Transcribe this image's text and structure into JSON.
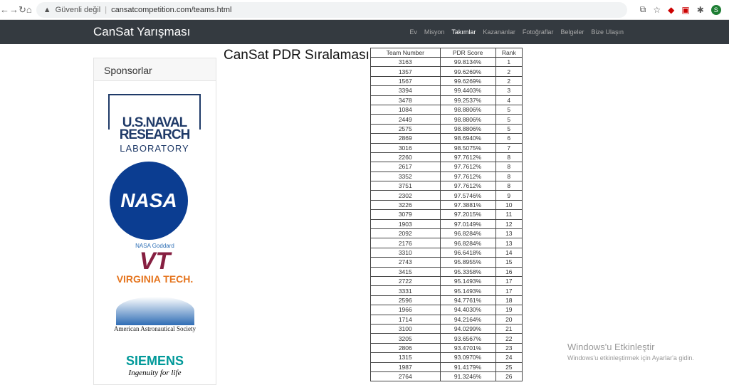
{
  "browser": {
    "security": "Güvenli değil",
    "url": "cansatcompetition.com/teams.html",
    "profile": "S"
  },
  "nav": {
    "brand": "CanSat Yarışması",
    "links": [
      "Ev",
      "Misyon",
      "Takımlar",
      "Kazananlar",
      "Fotoğraflar",
      "Belgeler",
      "Bize Ulaşın"
    ],
    "active": "Takımlar"
  },
  "sidebar": {
    "title": "Sponsorlar",
    "nrl": [
      "U.S.NAVAL",
      "RESEARCH",
      "LABORATORY"
    ],
    "nasa": "NASA",
    "nasa_caption": "NASA Goddard",
    "vt": "VT",
    "vt_name": "VIRGINIA TECH.",
    "aas": "American Astronautical Society",
    "siemens": "SIEMENS",
    "siemens_tag": "Ingenuity for life"
  },
  "main": {
    "title": "CanSat PDR Sıralaması",
    "columns": [
      "Team Number",
      "PDR Score",
      "Rank"
    ],
    "rows": [
      [
        "3163",
        "99.8134%",
        "1"
      ],
      [
        "1357",
        "99.6269%",
        "2"
      ],
      [
        "1567",
        "99.6269%",
        "2"
      ],
      [
        "3394",
        "99.4403%",
        "3"
      ],
      [
        "3478",
        "99.2537%",
        "4"
      ],
      [
        "1084",
        "98.8806%",
        "5"
      ],
      [
        "2449",
        "98.8806%",
        "5"
      ],
      [
        "2575",
        "98.8806%",
        "5"
      ],
      [
        "2869",
        "98.6940%",
        "6"
      ],
      [
        "3016",
        "98.5075%",
        "7"
      ],
      [
        "2260",
        "97.7612%",
        "8"
      ],
      [
        "2617",
        "97.7612%",
        "8"
      ],
      [
        "3352",
        "97.7612%",
        "8"
      ],
      [
        "3751",
        "97.7612%",
        "8"
      ],
      [
        "2302",
        "97.5746%",
        "9"
      ],
      [
        "3226",
        "97.3881%",
        "10"
      ],
      [
        "3079",
        "97.2015%",
        "11"
      ],
      [
        "1903",
        "97.0149%",
        "12"
      ],
      [
        "2092",
        "96.8284%",
        "13"
      ],
      [
        "2176",
        "96.8284%",
        "13"
      ],
      [
        "3310",
        "96.6418%",
        "14"
      ],
      [
        "2743",
        "95.8955%",
        "15"
      ],
      [
        "3415",
        "95.3358%",
        "16"
      ],
      [
        "2722",
        "95.1493%",
        "17"
      ],
      [
        "3331",
        "95.1493%",
        "17"
      ],
      [
        "2596",
        "94.7761%",
        "18"
      ],
      [
        "1966",
        "94.4030%",
        "19"
      ],
      [
        "1714",
        "94.2164%",
        "20"
      ],
      [
        "3100",
        "94.0299%",
        "21"
      ],
      [
        "3205",
        "93.6567%",
        "22"
      ],
      [
        "2806",
        "93.4701%",
        "23"
      ],
      [
        "1315",
        "93.0970%",
        "24"
      ],
      [
        "1987",
        "91.4179%",
        "25"
      ],
      [
        "2764",
        "91.3246%",
        "26"
      ]
    ]
  },
  "watermark": {
    "title": "Windows'u Etkinleştir",
    "sub": "Windows'u etkinleştirmek için Ayarlar'a gidin."
  }
}
